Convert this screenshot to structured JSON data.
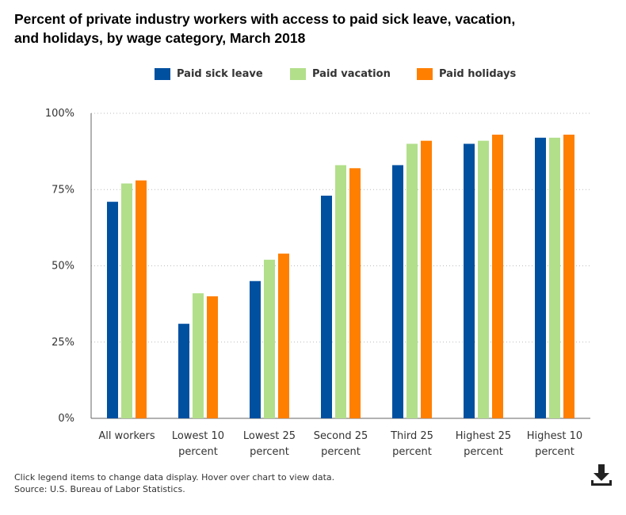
{
  "title_line1": "Percent of private industry workers with access to paid sick leave, vacation,",
  "title_line2": "and holidays, by wage category, March 2018",
  "footer": {
    "note": "Click legend items to change data display. Hover over chart to view data.",
    "source": "Source: U.S. Bureau of Labor Statistics."
  },
  "icons": {
    "download": "download-icon"
  },
  "chart_data": {
    "type": "bar",
    "categories": [
      [
        "All workers"
      ],
      [
        "Lowest 10",
        "percent"
      ],
      [
        "Lowest 25",
        "percent"
      ],
      [
        "Second 25",
        "percent"
      ],
      [
        "Third 25",
        "percent"
      ],
      [
        "Highest 25",
        "percent"
      ],
      [
        "Highest 10",
        "percent"
      ]
    ],
    "series": [
      {
        "name": "Paid sick leave",
        "color": "#0050a0",
        "values": [
          71,
          31,
          45,
          73,
          83,
          90,
          92
        ]
      },
      {
        "name": "Paid vacation",
        "color": "#b2df8a",
        "values": [
          77,
          41,
          52,
          83,
          90,
          91,
          92
        ]
      },
      {
        "name": "Paid holidays",
        "color": "#ff7f00",
        "values": [
          78,
          40,
          54,
          82,
          91,
          93,
          93
        ]
      }
    ],
    "y_ticks": [
      "0%",
      "25%",
      "50%",
      "75%",
      "100%"
    ],
    "ylim": [
      0,
      100
    ],
    "grid": true,
    "legend_position": "top"
  }
}
